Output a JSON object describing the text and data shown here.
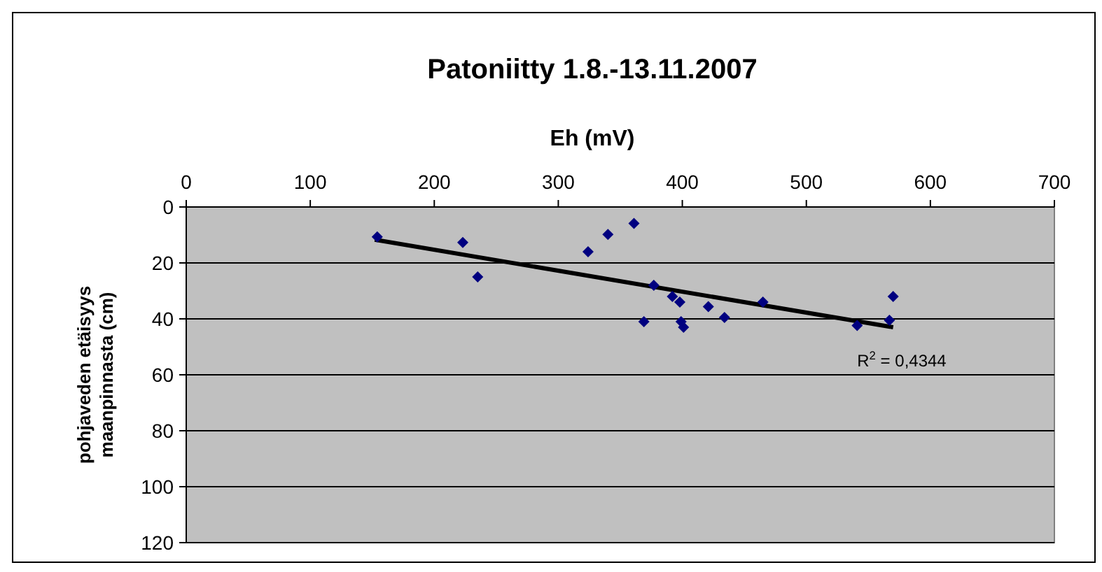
{
  "chart_data": {
    "type": "scatter",
    "title": "Patoniitty 1.8.-13.11.2007",
    "xlabel": "Eh (mV)",
    "ylabel": "pohjaveden etäisyys maanpinnasta (cm)",
    "xlim": [
      0,
      700
    ],
    "xticks": [
      0,
      100,
      200,
      300,
      400,
      500,
      600,
      700
    ],
    "ylim": [
      120,
      0
    ],
    "yticks": [
      0,
      20,
      40,
      60,
      80,
      100,
      120
    ],
    "grid": "y",
    "marker": "diamond",
    "x": [
      154,
      223,
      235,
      324,
      340,
      361,
      369,
      377,
      392,
      398,
      399,
      401,
      421,
      434,
      465,
      541,
      567,
      570
    ],
    "series": [
      {
        "color": "#000080",
        "values": [
          10.7,
          12.7,
          25,
          16,
          9.8,
          5.9,
          41,
          28,
          32,
          34,
          41,
          43,
          35.6,
          39.5,
          34,
          42.4,
          40.5,
          32
        ]
      },
      {
        "type": "line",
        "color": "#000000",
        "marker": "none",
        "x": [
          152,
          570
        ],
        "values": [
          11.7,
          43
        ]
      }
    ],
    "annotations": [
      "R$^{2}$ = 0,4344"
    ]
  }
}
